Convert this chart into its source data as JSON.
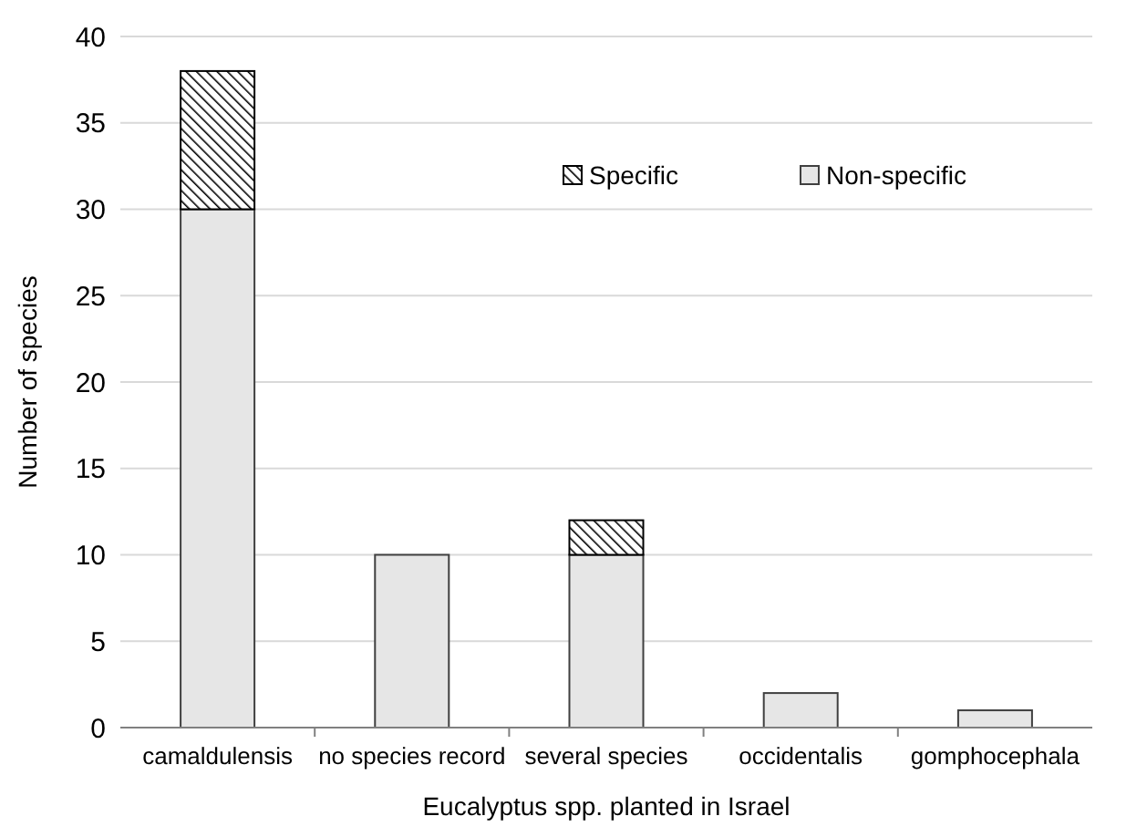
{
  "chart_data": {
    "type": "bar",
    "stacked": true,
    "xlabel": "Eucalyptus spp. planted in Israel",
    "ylabel": "Number of species",
    "categories": [
      "camaldulensis",
      "no species record",
      "several species",
      "occidentalis",
      "gomphocephala"
    ],
    "series": [
      {
        "name": "Non-specific",
        "color": "#e6e6e6",
        "values": [
          30,
          10,
          10,
          2,
          1
        ]
      },
      {
        "name": "Specific",
        "color": "#000000",
        "values": [
          8,
          0,
          2,
          0,
          0
        ]
      }
    ],
    "ylim": [
      0,
      40
    ],
    "yticks": [
      0,
      5,
      10,
      15,
      20,
      25,
      30,
      35,
      40
    ],
    "grid": "y",
    "legend": "top right"
  }
}
